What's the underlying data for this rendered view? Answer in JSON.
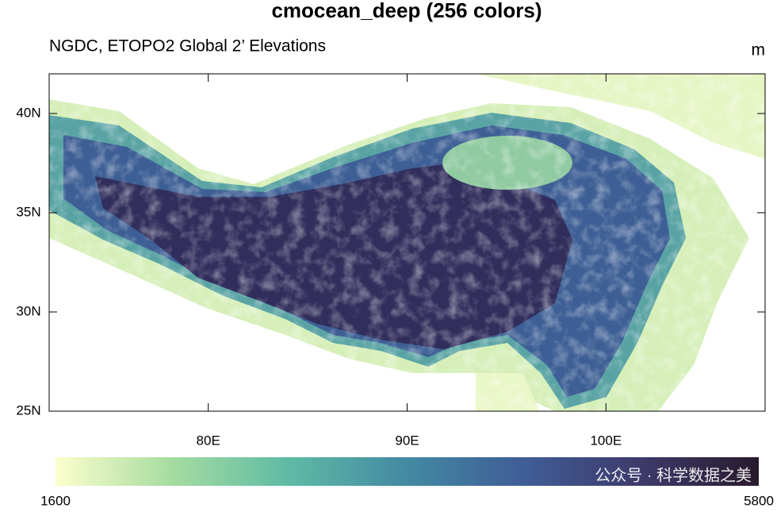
{
  "chart_data": {
    "type": "map",
    "title": "cmocean_deep (256 colors)",
    "subtitle": "NGDC, ETOPO2 Global 2’ Elevations",
    "units": "m",
    "xlim": [
      72,
      108
    ],
    "ylim": [
      25,
      42
    ],
    "xticks": [
      {
        "value": 80,
        "label": "80E"
      },
      {
        "value": 90,
        "label": "90E"
      },
      {
        "value": 100,
        "label": "100E"
      }
    ],
    "yticks": [
      {
        "value": 25,
        "label": "25N"
      },
      {
        "value": 30,
        "label": "30N"
      },
      {
        "value": 35,
        "label": "35N"
      },
      {
        "value": 40,
        "label": "40N"
      }
    ],
    "colorbar": {
      "range": [
        1600,
        5800
      ],
      "colors": [
        "#fdfecc",
        "#a5dca0",
        "#5ebaa5",
        "#4389a3",
        "#3f5d96",
        "#3e3a6a",
        "#281a2c"
      ]
    },
    "watermark": "公众号 · 科学数据之美"
  }
}
